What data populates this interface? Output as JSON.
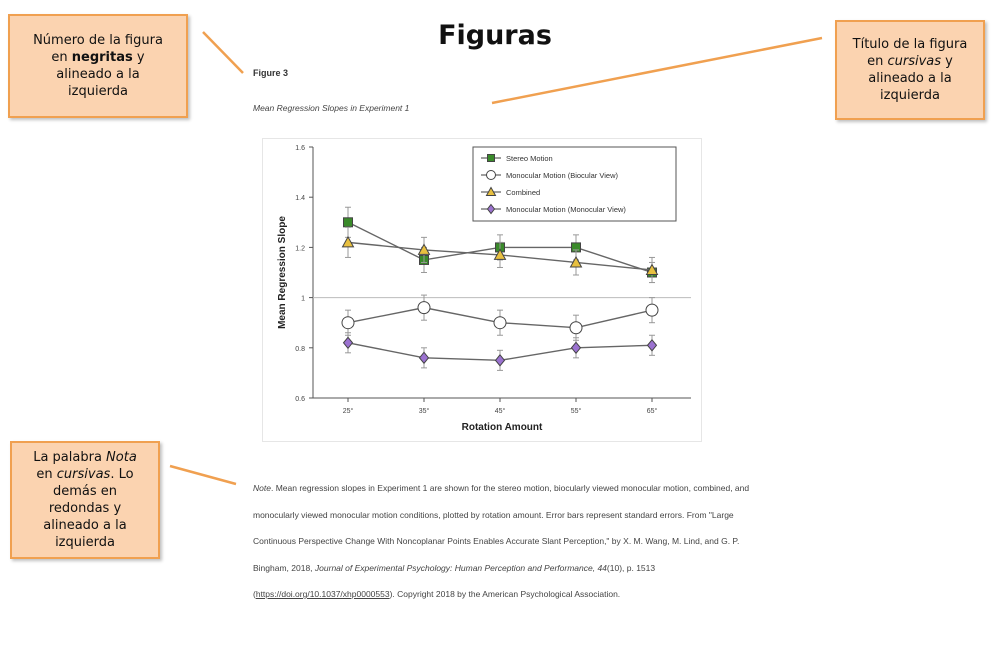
{
  "heading": "Figuras",
  "callouts": {
    "bold_number": {
      "line1": "Número de la figura",
      "line2_pre": "en ",
      "line2_bold": "negritas",
      "line2_post": " y",
      "line3": "alineado a la",
      "line4": "izquierda"
    },
    "italic_title": {
      "line1": "Título de la figura",
      "line2_pre": "en ",
      "line2_italic": "cursivas",
      "line2_post": " y",
      "line3": "alineado a la",
      "line4": "izquierda"
    },
    "note_word": {
      "line1": "La palabra ",
      "line1_italic": "Nota",
      "line2_pre": "en ",
      "line2_italic": "cursivas",
      "line2_post": ". Lo",
      "line3": "demás en",
      "line4": "redondas y",
      "line5": "alineado a la",
      "line6": "izquierda"
    }
  },
  "figure": {
    "number": "Figure 3",
    "title": "Mean Regression Slopes in Experiment 1"
  },
  "note": {
    "label": "Note",
    "text1": ". Mean regression slopes in Experiment 1 are shown for the stereo motion, biocularly viewed monocular motion, combined, and monocularly viewed monocular motion conditions, plotted by rotation amount. Error bars represent standard errors. From \"Large Continuous Perspective Change With Noncoplanar Points Enables Accurate Slant Perception,\" by X. M. Wang, M. Lind, and G. P. Bingham, 2018, ",
    "journal": "Journal of Experimental Psychology: Human Perception and Performance, 44",
    "text2": "(10), p. 1513 (",
    "doi": "https://doi.org/10.1037/xhp0000553",
    "text3": "). Copyright 2018 by the American Psychological Association."
  },
  "chart_data": {
    "type": "line",
    "xlabel": "Rotation Amount",
    "ylabel": "Mean Regression Slope",
    "categories": [
      "25°",
      "35°",
      "45°",
      "55°",
      "65°"
    ],
    "ylim": [
      0.6,
      1.6
    ],
    "yticks": [
      0.6,
      0.8,
      1,
      1.2,
      1.4,
      1.6
    ],
    "reference_line": 1,
    "legend_position": "top-right",
    "grid": false,
    "series": [
      {
        "name": "Stereo Motion",
        "marker": "square",
        "color": "#3a8a2a",
        "values": [
          1.3,
          1.15,
          1.2,
          1.2,
          1.1
        ],
        "errors": [
          0.06,
          0.05,
          0.05,
          0.05,
          0.04
        ]
      },
      {
        "name": "Monocular Motion (Biocular View)",
        "marker": "circle-open",
        "color": "#ffffff",
        "values": [
          0.9,
          0.96,
          0.9,
          0.88,
          0.95
        ],
        "errors": [
          0.05,
          0.05,
          0.05,
          0.05,
          0.05
        ]
      },
      {
        "name": "Combined",
        "marker": "triangle",
        "color": "#e8c040",
        "values": [
          1.22,
          1.19,
          1.17,
          1.14,
          1.11
        ],
        "errors": [
          0.06,
          0.05,
          0.05,
          0.05,
          0.05
        ]
      },
      {
        "name": "Monocular Motion (Monocular View)",
        "marker": "diamond",
        "color": "#9b72d0",
        "values": [
          0.82,
          0.76,
          0.75,
          0.8,
          0.81
        ],
        "errors": [
          0.04,
          0.04,
          0.04,
          0.04,
          0.04
        ]
      }
    ]
  }
}
